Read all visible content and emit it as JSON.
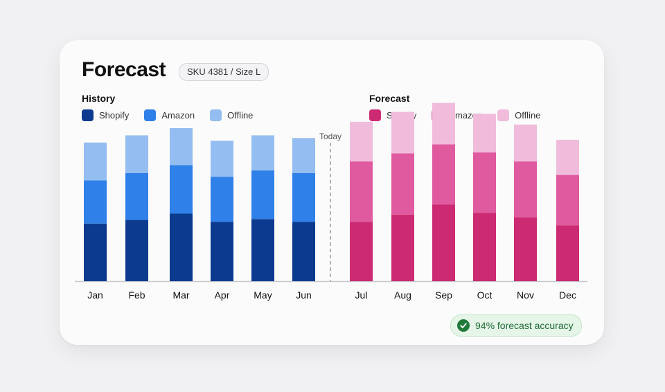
{
  "title": "Forecast",
  "sku": "SKU 4381 / Size L",
  "history": {
    "title": "History",
    "legend": [
      {
        "label": "Shopify",
        "color": "#0b3a8f"
      },
      {
        "label": "Amazon",
        "color": "#2f80e8"
      },
      {
        "label": "Offline",
        "color": "#94bdf1"
      }
    ]
  },
  "forecast": {
    "title": "Forecast",
    "legend": [
      {
        "label": "Shopify",
        "color": "#cc2a72"
      },
      {
        "label": "Amazon",
        "color": "#e05aa0"
      },
      {
        "label": "Offline",
        "color": "#f1bcdc"
      }
    ]
  },
  "divider_label": "Today",
  "accuracy": "94% forecast accuracy",
  "chart_data": {
    "type": "bar",
    "stacked": true,
    "categories": [
      "Jan",
      "Feb",
      "Mar",
      "Apr",
      "May",
      "Jun",
      "Jul",
      "Aug",
      "Sep",
      "Oct",
      "Nov",
      "Dec"
    ],
    "history_categories": [
      "Jan",
      "Feb",
      "Mar",
      "Apr",
      "May",
      "Jun"
    ],
    "forecast_categories": [
      "Jul",
      "Aug",
      "Sep",
      "Oct",
      "Nov",
      "Dec"
    ],
    "series": [
      {
        "name": "Shopify",
        "values": [
          64,
          68,
          75,
          66,
          69,
          66,
          66,
          74,
          85,
          76,
          71,
          62
        ]
      },
      {
        "name": "Amazon",
        "values": [
          48,
          52,
          54,
          50,
          54,
          54,
          67,
          68,
          67,
          67,
          62,
          56
        ]
      },
      {
        "name": "Offline",
        "values": [
          42,
          42,
          41,
          40,
          39,
          39,
          44,
          46,
          46,
          43,
          41,
          39
        ]
      }
    ],
    "y_axis_visible": false,
    "grid": false
  }
}
